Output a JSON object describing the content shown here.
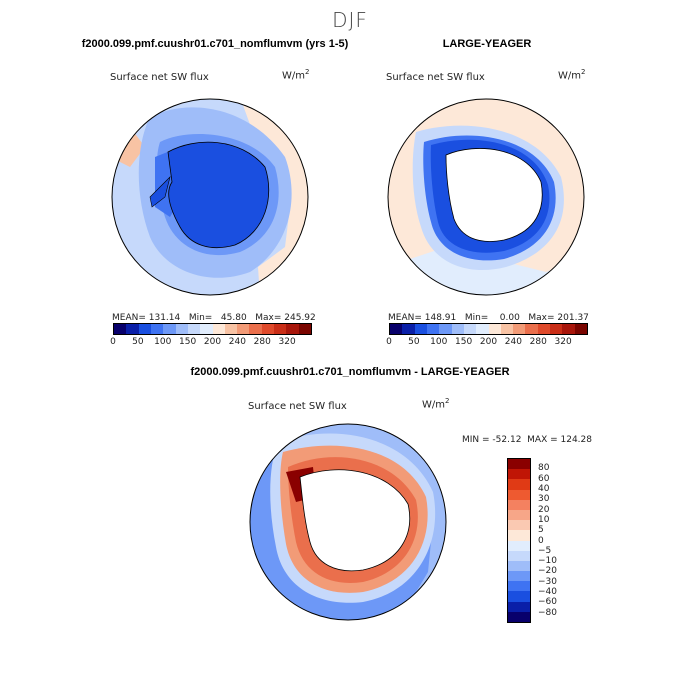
{
  "season": "DJF",
  "panel1": {
    "title": "f2000.099.pmf.cuushr01.c701_nomflumvm (yrs 1-5)",
    "variable": "Surface net SW flux",
    "units": "W/m",
    "units_exp": "2",
    "stats": "MEAN= 131.14   Min=   45.80   Max= 245.92"
  },
  "panel2": {
    "title": "LARGE-YEAGER",
    "variable": "Surface net SW flux",
    "units": "W/m",
    "units_exp": "2",
    "stats": "MEAN= 148.91   Min=    0.00   Max= 201.37"
  },
  "panel3": {
    "title": "f2000.099.pmf.cuushr01.c701_nomflumvm - LARGE-YEAGER",
    "variable": "Surface net SW flux",
    "units": "W/m",
    "units_exp": "2",
    "stats": "MIN = -52.12  MAX = 124.28"
  },
  "abs_colorbar": {
    "colors": [
      "#08006b",
      "#0a1fa8",
      "#1a4fe0",
      "#3f73f2",
      "#6d98f7",
      "#9fbdf9",
      "#c6d9fb",
      "#e1edfd",
      "#fde8d8",
      "#f8c3a4",
      "#f29b77",
      "#ea6f4c",
      "#df4a2b",
      "#c92e17",
      "#a8160b",
      "#7a0500"
    ],
    "labels": [
      "0",
      "50",
      "100",
      "150",
      "200",
      "240",
      "280",
      "320"
    ]
  },
  "diff_colorbar": {
    "colors": [
      "#8a0000",
      "#c01505",
      "#e03a15",
      "#ee5a30",
      "#f48160",
      "#f7a688",
      "#fac9b2",
      "#fde8d8",
      "#e1edfd",
      "#c6d9fb",
      "#9fbdf9",
      "#6d98f7",
      "#3f73f2",
      "#1a4fe0",
      "#0a1fa8",
      "#08006b"
    ],
    "labels": [
      "80",
      "60",
      "40",
      "30",
      "20",
      "10",
      "5",
      "0",
      "−5",
      "−10",
      "−20",
      "−30",
      "−40",
      "−60",
      "−80"
    ]
  }
}
